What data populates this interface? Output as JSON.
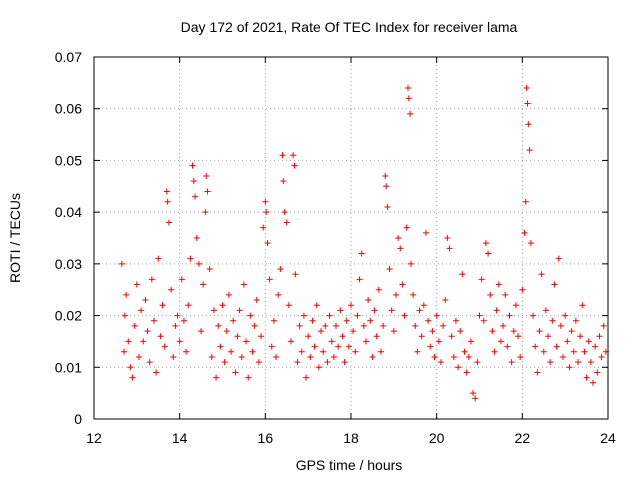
{
  "chart_data": {
    "type": "scatter",
    "title": "Day 172 of 2021, Rate Of TEC Index for receiver lama",
    "xlabel": "GPS time / hours",
    "ylabel": "ROTI / TECUs",
    "xlim": [
      12,
      24
    ],
    "ylim": [
      0,
      0.07
    ],
    "x_ticks": [
      "12",
      "14",
      "16",
      "18",
      "20",
      "22",
      "24"
    ],
    "y_ticks": [
      "0",
      "0.01",
      "0.02",
      "0.03",
      "0.04",
      "0.05",
      "0.06",
      "0.07"
    ],
    "grid": true,
    "marker": "+",
    "color": "#ff0000",
    "series": [
      {
        "name": "ROTI",
        "points": [
          [
            12.65,
            0.03
          ],
          [
            12.7,
            0.013
          ],
          [
            12.72,
            0.02
          ],
          [
            12.75,
            0.024
          ],
          [
            12.8,
            0.015
          ],
          [
            12.85,
            0.01
          ],
          [
            12.9,
            0.008
          ],
          [
            12.95,
            0.018
          ],
          [
            13.0,
            0.026
          ],
          [
            13.05,
            0.012
          ],
          [
            13.1,
            0.021
          ],
          [
            13.15,
            0.015
          ],
          [
            13.2,
            0.023
          ],
          [
            13.25,
            0.017
          ],
          [
            13.3,
            0.011
          ],
          [
            13.35,
            0.027
          ],
          [
            13.4,
            0.019
          ],
          [
            13.45,
            0.009
          ],
          [
            13.5,
            0.031
          ],
          [
            13.55,
            0.016
          ],
          [
            13.6,
            0.022
          ],
          [
            13.65,
            0.014
          ],
          [
            13.7,
            0.044
          ],
          [
            13.72,
            0.042
          ],
          [
            13.75,
            0.038
          ],
          [
            13.8,
            0.025
          ],
          [
            13.85,
            0.012
          ],
          [
            13.9,
            0.018
          ],
          [
            13.95,
            0.02
          ],
          [
            14.0,
            0.015
          ],
          [
            14.05,
            0.027
          ],
          [
            14.1,
            0.019
          ],
          [
            14.15,
            0.013
          ],
          [
            14.2,
            0.022
          ],
          [
            14.25,
            0.031
          ],
          [
            14.3,
            0.049
          ],
          [
            14.33,
            0.046
          ],
          [
            14.36,
            0.043
          ],
          [
            14.4,
            0.035
          ],
          [
            14.45,
            0.03
          ],
          [
            14.5,
            0.017
          ],
          [
            14.55,
            0.026
          ],
          [
            14.6,
            0.04
          ],
          [
            14.62,
            0.047
          ],
          [
            14.65,
            0.044
          ],
          [
            14.7,
            0.029
          ],
          [
            14.75,
            0.012
          ],
          [
            14.8,
            0.021
          ],
          [
            14.85,
            0.008
          ],
          [
            14.9,
            0.018
          ],
          [
            14.95,
            0.014
          ],
          [
            15.0,
            0.022
          ],
          [
            15.05,
            0.011
          ],
          [
            15.1,
            0.017
          ],
          [
            15.15,
            0.024
          ],
          [
            15.2,
            0.013
          ],
          [
            15.25,
            0.019
          ],
          [
            15.3,
            0.009
          ],
          [
            15.35,
            0.016
          ],
          [
            15.4,
            0.021
          ],
          [
            15.45,
            0.012
          ],
          [
            15.5,
            0.026
          ],
          [
            15.55,
            0.015
          ],
          [
            15.6,
            0.008
          ],
          [
            15.65,
            0.02
          ],
          [
            15.7,
            0.013
          ],
          [
            15.75,
            0.018
          ],
          [
            15.8,
            0.023
          ],
          [
            15.85,
            0.011
          ],
          [
            15.9,
            0.016
          ],
          [
            15.95,
            0.037
          ],
          [
            16.0,
            0.042
          ],
          [
            16.02,
            0.04
          ],
          [
            16.05,
            0.034
          ],
          [
            16.1,
            0.027
          ],
          [
            16.15,
            0.014
          ],
          [
            16.2,
            0.019
          ],
          [
            16.25,
            0.012
          ],
          [
            16.3,
            0.024
          ],
          [
            16.35,
            0.029
          ],
          [
            16.4,
            0.051
          ],
          [
            16.42,
            0.046
          ],
          [
            16.45,
            0.04
          ],
          [
            16.5,
            0.038
          ],
          [
            16.55,
            0.022
          ],
          [
            16.6,
            0.015
          ],
          [
            16.65,
            0.051
          ],
          [
            16.68,
            0.049
          ],
          [
            16.7,
            0.028
          ],
          [
            16.75,
            0.011
          ],
          [
            16.8,
            0.018
          ],
          [
            16.85,
            0.013
          ],
          [
            16.9,
            0.02
          ],
          [
            16.95,
            0.008
          ],
          [
            17.0,
            0.016
          ],
          [
            17.05,
            0.012
          ],
          [
            17.1,
            0.019
          ],
          [
            17.15,
            0.014
          ],
          [
            17.2,
            0.022
          ],
          [
            17.25,
            0.01
          ],
          [
            17.3,
            0.017
          ],
          [
            17.35,
            0.013
          ],
          [
            17.4,
            0.018
          ],
          [
            17.45,
            0.011
          ],
          [
            17.5,
            0.02
          ],
          [
            17.55,
            0.015
          ],
          [
            17.6,
            0.012
          ],
          [
            17.65,
            0.018
          ],
          [
            17.7,
            0.014
          ],
          [
            17.75,
            0.021
          ],
          [
            17.8,
            0.016
          ],
          [
            17.85,
            0.011
          ],
          [
            17.9,
            0.019
          ],
          [
            17.95,
            0.014
          ],
          [
            18.0,
            0.022
          ],
          [
            18.05,
            0.017
          ],
          [
            18.1,
            0.013
          ],
          [
            18.15,
            0.02
          ],
          [
            18.2,
            0.027
          ],
          [
            18.25,
            0.032
          ],
          [
            18.3,
            0.018
          ],
          [
            18.35,
            0.015
          ],
          [
            18.4,
            0.023
          ],
          [
            18.45,
            0.019
          ],
          [
            18.5,
            0.012
          ],
          [
            18.55,
            0.021
          ],
          [
            18.6,
            0.016
          ],
          [
            18.65,
            0.025
          ],
          [
            18.7,
            0.013
          ],
          [
            18.75,
            0.018
          ],
          [
            18.8,
            0.047
          ],
          [
            18.82,
            0.045
          ],
          [
            18.85,
            0.041
          ],
          [
            18.9,
            0.029
          ],
          [
            18.95,
            0.021
          ],
          [
            19.0,
            0.017
          ],
          [
            19.05,
            0.024
          ],
          [
            19.1,
            0.035
          ],
          [
            19.15,
            0.033
          ],
          [
            19.2,
            0.026
          ],
          [
            19.25,
            0.02
          ],
          [
            19.3,
            0.037
          ],
          [
            19.33,
            0.064
          ],
          [
            19.35,
            0.062
          ],
          [
            19.38,
            0.059
          ],
          [
            19.4,
            0.03
          ],
          [
            19.45,
            0.024
          ],
          [
            19.5,
            0.018
          ],
          [
            19.55,
            0.013
          ],
          [
            19.6,
            0.021
          ],
          [
            19.65,
            0.016
          ],
          [
            19.7,
            0.022
          ],
          [
            19.75,
            0.036
          ],
          [
            19.8,
            0.019
          ],
          [
            19.85,
            0.014
          ],
          [
            19.9,
            0.017
          ],
          [
            19.95,
            0.012
          ],
          [
            20.0,
            0.02
          ],
          [
            20.05,
            0.015
          ],
          [
            20.1,
            0.011
          ],
          [
            20.15,
            0.018
          ],
          [
            20.2,
            0.023
          ],
          [
            20.25,
            0.035
          ],
          [
            20.3,
            0.033
          ],
          [
            20.35,
            0.016
          ],
          [
            20.4,
            0.012
          ],
          [
            20.45,
            0.019
          ],
          [
            20.5,
            0.01
          ],
          [
            20.55,
            0.017
          ],
          [
            20.6,
            0.028
          ],
          [
            20.65,
            0.013
          ],
          [
            20.7,
            0.009
          ],
          [
            20.75,
            0.012
          ],
          [
            20.8,
            0.015
          ],
          [
            20.85,
            0.005
          ],
          [
            20.9,
            0.004
          ],
          [
            20.95,
            0.011
          ],
          [
            21.0,
            0.02
          ],
          [
            21.05,
            0.027
          ],
          [
            21.1,
            0.019
          ],
          [
            21.15,
            0.034
          ],
          [
            21.2,
            0.032
          ],
          [
            21.25,
            0.024
          ],
          [
            21.3,
            0.017
          ],
          [
            21.35,
            0.013
          ],
          [
            21.4,
            0.021
          ],
          [
            21.45,
            0.026
          ],
          [
            21.5,
            0.015
          ],
          [
            21.55,
            0.018
          ],
          [
            21.6,
            0.024
          ],
          [
            21.65,
            0.014
          ],
          [
            21.7,
            0.02
          ],
          [
            21.75,
            0.011
          ],
          [
            21.8,
            0.017
          ],
          [
            21.85,
            0.022
          ],
          [
            21.9,
            0.016
          ],
          [
            21.95,
            0.012
          ],
          [
            22.0,
            0.025
          ],
          [
            22.05,
            0.036
          ],
          [
            22.08,
            0.042
          ],
          [
            22.1,
            0.064
          ],
          [
            22.12,
            0.061
          ],
          [
            22.14,
            0.057
          ],
          [
            22.17,
            0.052
          ],
          [
            22.2,
            0.034
          ],
          [
            22.25,
            0.02
          ],
          [
            22.3,
            0.014
          ],
          [
            22.35,
            0.009
          ],
          [
            22.4,
            0.017
          ],
          [
            22.45,
            0.028
          ],
          [
            22.5,
            0.013
          ],
          [
            22.55,
            0.021
          ],
          [
            22.6,
            0.016
          ],
          [
            22.65,
            0.011
          ],
          [
            22.7,
            0.019
          ],
          [
            22.75,
            0.026
          ],
          [
            22.8,
            0.014
          ],
          [
            22.85,
            0.031
          ],
          [
            22.9,
            0.018
          ],
          [
            22.95,
            0.012
          ],
          [
            23.0,
            0.02
          ],
          [
            23.05,
            0.015
          ],
          [
            23.1,
            0.01
          ],
          [
            23.15,
            0.017
          ],
          [
            23.2,
            0.013
          ],
          [
            23.25,
            0.019
          ],
          [
            23.3,
            0.011
          ],
          [
            23.35,
            0.016
          ],
          [
            23.4,
            0.022
          ],
          [
            23.45,
            0.013
          ],
          [
            23.5,
            0.008
          ],
          [
            23.55,
            0.015
          ],
          [
            23.6,
            0.011
          ],
          [
            23.65,
            0.007
          ],
          [
            23.7,
            0.014
          ],
          [
            23.75,
            0.009
          ],
          [
            23.8,
            0.016
          ],
          [
            23.85,
            0.012
          ],
          [
            23.9,
            0.018
          ],
          [
            23.95,
            0.013
          ]
        ]
      }
    ]
  }
}
